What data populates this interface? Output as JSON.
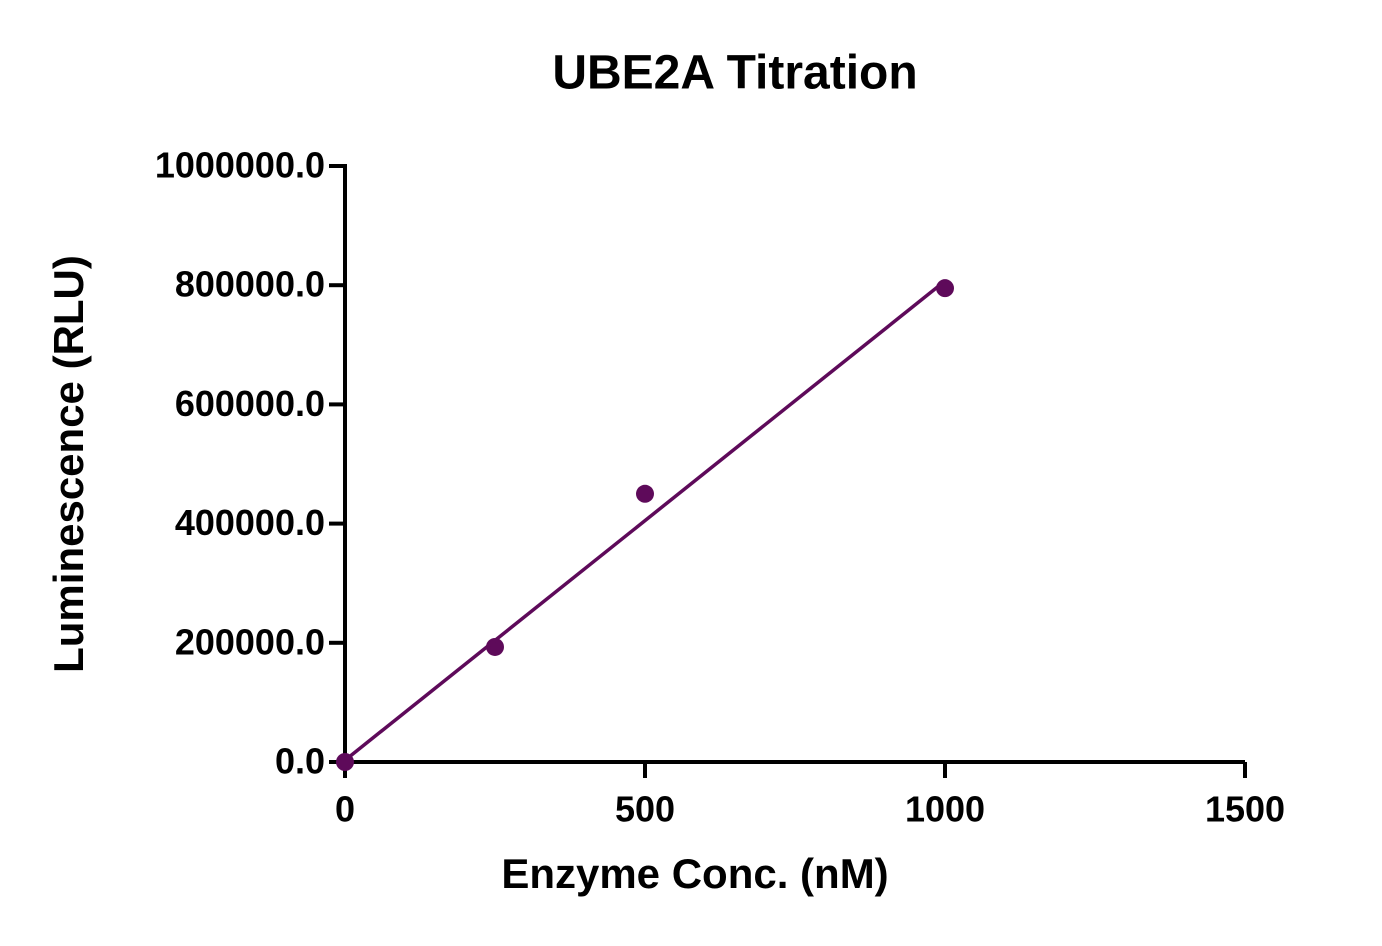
{
  "chart_data": {
    "type": "scatter",
    "title": "UBE2A Titration",
    "x_label": "Enzyme Conc. (nM)",
    "y_label": "Luminescence (RLU)",
    "xlim": [
      0,
      1500
    ],
    "xticks": [
      0,
      500,
      1000,
      1500
    ],
    "ylim": [
      0,
      1000000
    ],
    "yticks": [
      {
        "value": 0,
        "label": "0.0"
      },
      {
        "value": 200000,
        "label": "200000.0"
      },
      {
        "value": 400000,
        "label": "400000.0"
      },
      {
        "value": 600000,
        "label": "600000.0"
      },
      {
        "value": 800000,
        "label": "800000.0"
      },
      {
        "value": 1000000,
        "label": "1000000.0"
      }
    ],
    "series": [
      {
        "type": "scatter",
        "color": "#5e0a5a",
        "x": [
          0,
          250,
          500,
          1000
        ],
        "values": [
          0,
          193000,
          450000,
          795000
        ]
      },
      {
        "type": "line",
        "color": "#5e0a5a",
        "x": [
          0,
          1000
        ],
        "values": [
          3000,
          807000
        ]
      }
    ]
  }
}
